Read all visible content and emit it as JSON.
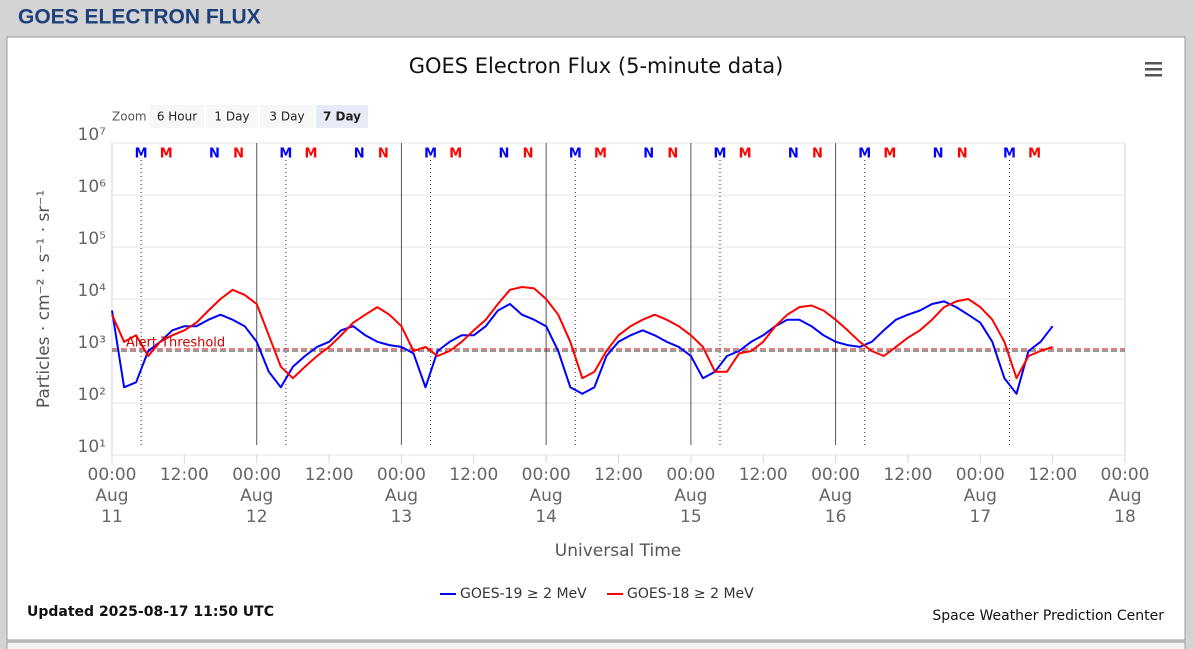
{
  "header": {
    "title": "GOES ELECTRON FLUX"
  },
  "zoom": {
    "label": "Zoom",
    "buttons": [
      "6 Hour",
      "1 Day",
      "3 Day",
      "7 Day"
    ],
    "selected": "7 Day"
  },
  "chart_data": {
    "type": "line",
    "title": "GOES Electron Flux (5-minute data)",
    "x_label": "Universal Time",
    "y_label": "Particles · cm⁻² · s⁻¹ · sr⁻¹",
    "log_y": true,
    "grid": true,
    "x": [
      "Aug 11 00:00",
      "Aug 11 02:00",
      "Aug 11 04:00",
      "Aug 11 06:00",
      "Aug 11 08:00",
      "Aug 11 10:00",
      "Aug 11 12:00",
      "Aug 11 14:00",
      "Aug 11 16:00",
      "Aug 11 18:00",
      "Aug 11 20:00",
      "Aug 11 22:00",
      "Aug 12 00:00",
      "Aug 12 02:00",
      "Aug 12 04:00",
      "Aug 12 06:00",
      "Aug 12 08:00",
      "Aug 12 10:00",
      "Aug 12 12:00",
      "Aug 12 14:00",
      "Aug 12 16:00",
      "Aug 12 18:00",
      "Aug 12 20:00",
      "Aug 12 22:00",
      "Aug 13 00:00",
      "Aug 13 02:00",
      "Aug 13 04:00",
      "Aug 13 06:00",
      "Aug 13 08:00",
      "Aug 13 10:00",
      "Aug 13 12:00",
      "Aug 13 14:00",
      "Aug 13 16:00",
      "Aug 13 18:00",
      "Aug 13 20:00",
      "Aug 13 22:00",
      "Aug 14 00:00",
      "Aug 14 02:00",
      "Aug 14 04:00",
      "Aug 14 06:00",
      "Aug 14 08:00",
      "Aug 14 10:00",
      "Aug 14 12:00",
      "Aug 14 14:00",
      "Aug 14 16:00",
      "Aug 14 18:00",
      "Aug 14 20:00",
      "Aug 14 22:00",
      "Aug 15 00:00",
      "Aug 15 02:00",
      "Aug 15 04:00",
      "Aug 15 06:00",
      "Aug 15 08:00",
      "Aug 15 10:00",
      "Aug 15 12:00",
      "Aug 15 14:00",
      "Aug 15 16:00",
      "Aug 15 18:00",
      "Aug 15 20:00",
      "Aug 15 22:00",
      "Aug 16 00:00",
      "Aug 16 02:00",
      "Aug 16 04:00",
      "Aug 16 06:00",
      "Aug 16 08:00",
      "Aug 16 10:00",
      "Aug 16 12:00",
      "Aug 16 14:00",
      "Aug 16 16:00",
      "Aug 16 18:00",
      "Aug 16 20:00",
      "Aug 16 22:00",
      "Aug 17 00:00",
      "Aug 17 02:00",
      "Aug 17 04:00",
      "Aug 17 06:00",
      "Aug 17 08:00",
      "Aug 17 10:00",
      "Aug 17 12:00"
    ],
    "series": [
      {
        "name": "GOES-19 ≥ 2 MeV",
        "color": "#0000ff",
        "values": [
          6000,
          200,
          250,
          1000,
          1500,
          2500,
          3000,
          3000,
          4000,
          5000,
          4000,
          3000,
          1500,
          400,
          200,
          500,
          800,
          1200,
          1500,
          2500,
          3000,
          2000,
          1500,
          1300,
          1200,
          900,
          200,
          1000,
          1500,
          2000,
          2000,
          3000,
          6000,
          8000,
          5000,
          4000,
          3000,
          1000,
          200,
          150,
          200,
          800,
          1500,
          2000,
          2500,
          2000,
          1500,
          1200,
          800,
          300,
          400,
          800,
          1000,
          1500,
          2000,
          3000,
          4000,
          4000,
          3000,
          2000,
          1500,
          1300,
          1200,
          1500,
          2500,
          4000,
          5000,
          6000,
          8000,
          9000,
          7000,
          5000,
          3500,
          1500,
          300,
          150,
          1000,
          1500,
          3000
        ]
      },
      {
        "name": "GOES-18 ≥ 2 MeV",
        "color": "#ff0000",
        "values": [
          5000,
          1500,
          2000,
          800,
          1500,
          2000,
          2500,
          3500,
          6000,
          10000,
          15000,
          12000,
          8000,
          2000,
          500,
          300,
          500,
          800,
          1200,
          2000,
          3500,
          5000,
          7000,
          5000,
          3000,
          1000,
          1200,
          800,
          1000,
          1500,
          2500,
          4000,
          8000,
          15000,
          17000,
          16000,
          10000,
          5000,
          1500,
          300,
          400,
          1000,
          2000,
          3000,
          4000,
          5000,
          4000,
          3000,
          2000,
          1200,
          400,
          400,
          900,
          1000,
          1500,
          3000,
          5000,
          7000,
          7500,
          6000,
          4000,
          2500,
          1500,
          1000,
          800,
          1200,
          1800,
          2500,
          4000,
          7000,
          9000,
          10000,
          7000,
          4000,
          1500,
          300,
          800,
          1000,
          1200
        ]
      }
    ],
    "xlim": [
      "Aug 11 00:00",
      "Aug 18 00:00"
    ],
    "xticks": [
      {
        "value": "Aug 11 00:00",
        "label": "00:00 Aug 11"
      },
      {
        "value": "Aug 11 12:00",
        "label": "12:00"
      },
      {
        "value": "Aug 12 00:00",
        "label": "00:00 Aug 12"
      },
      {
        "value": "Aug 12 12:00",
        "label": "12:00"
      },
      {
        "value": "Aug 13 00:00",
        "label": "00:00 Aug 13"
      },
      {
        "value": "Aug 13 12:00",
        "label": "12:00"
      },
      {
        "value": "Aug 14 00:00",
        "label": "00:00 Aug 14"
      },
      {
        "value": "Aug 14 12:00",
        "label": "12:00"
      },
      {
        "value": "Aug 15 00:00",
        "label": "00:00 Aug 15"
      },
      {
        "value": "Aug 15 12:00",
        "label": "12:00"
      },
      {
        "value": "Aug 16 00:00",
        "label": "00:00 Aug 16"
      },
      {
        "value": "Aug 16 12:00",
        "label": "12:00"
      },
      {
        "value": "Aug 17 00:00",
        "label": "00:00 Aug 17"
      },
      {
        "value": "Aug 17 12:00",
        "label": "12:00"
      },
      {
        "value": "Aug 18 00:00",
        "label": "00:00 Aug 18"
      }
    ],
    "ylim": [
      10,
      10000000
    ],
    "yticks": [
      {
        "value": 10,
        "label": "10¹"
      },
      {
        "value": 100,
        "label": "10²"
      },
      {
        "value": 1000,
        "label": "10³"
      },
      {
        "value": 10000,
        "label": "10⁴"
      },
      {
        "value": 100000,
        "label": "10⁵"
      },
      {
        "value": 1000000,
        "label": "10⁶"
      },
      {
        "value": 10000000,
        "label": "10⁷"
      }
    ],
    "threshold": {
      "value": 1000,
      "label": "Alert Threshold",
      "color": "#cc0000"
    },
    "markers": [
      {
        "label": "M",
        "color": "#0000ff",
        "x": "Aug 11 04:50"
      },
      {
        "label": "M",
        "color": "#ff0000",
        "x": "Aug 11 09:00"
      },
      {
        "label": "N",
        "color": "#0000ff",
        "x": "Aug 11 17:00"
      },
      {
        "label": "N",
        "color": "#ff0000",
        "x": "Aug 11 21:00"
      },
      {
        "label": "M",
        "color": "#0000ff",
        "x": "Aug 12 04:50"
      },
      {
        "label": "M",
        "color": "#ff0000",
        "x": "Aug 12 09:00"
      },
      {
        "label": "N",
        "color": "#0000ff",
        "x": "Aug 12 17:00"
      },
      {
        "label": "N",
        "color": "#ff0000",
        "x": "Aug 12 21:00"
      },
      {
        "label": "M",
        "color": "#0000ff",
        "x": "Aug 13 04:50"
      },
      {
        "label": "M",
        "color": "#ff0000",
        "x": "Aug 13 09:00"
      },
      {
        "label": "N",
        "color": "#0000ff",
        "x": "Aug 13 17:00"
      },
      {
        "label": "N",
        "color": "#ff0000",
        "x": "Aug 13 21:00"
      },
      {
        "label": "M",
        "color": "#0000ff",
        "x": "Aug 14 04:50"
      },
      {
        "label": "M",
        "color": "#ff0000",
        "x": "Aug 14 09:00"
      },
      {
        "label": "N",
        "color": "#0000ff",
        "x": "Aug 14 17:00"
      },
      {
        "label": "N",
        "color": "#ff0000",
        "x": "Aug 14 21:00"
      },
      {
        "label": "M",
        "color": "#0000ff",
        "x": "Aug 15 04:50"
      },
      {
        "label": "M",
        "color": "#ff0000",
        "x": "Aug 15 09:00"
      },
      {
        "label": "N",
        "color": "#0000ff",
        "x": "Aug 15 17:00"
      },
      {
        "label": "N",
        "color": "#ff0000",
        "x": "Aug 15 21:00"
      },
      {
        "label": "M",
        "color": "#0000ff",
        "x": "Aug 16 04:50"
      },
      {
        "label": "M",
        "color": "#ff0000",
        "x": "Aug 16 09:00"
      },
      {
        "label": "N",
        "color": "#0000ff",
        "x": "Aug 16 17:00"
      },
      {
        "label": "N",
        "color": "#ff0000",
        "x": "Aug 16 21:00"
      },
      {
        "label": "M",
        "color": "#0000ff",
        "x": "Aug 17 04:50"
      },
      {
        "label": "M",
        "color": "#ff0000",
        "x": "Aug 17 09:00"
      }
    ],
    "updated": "Updated 2025-08-17 11:50 UTC",
    "credit": "Space Weather Prediction Center"
  }
}
